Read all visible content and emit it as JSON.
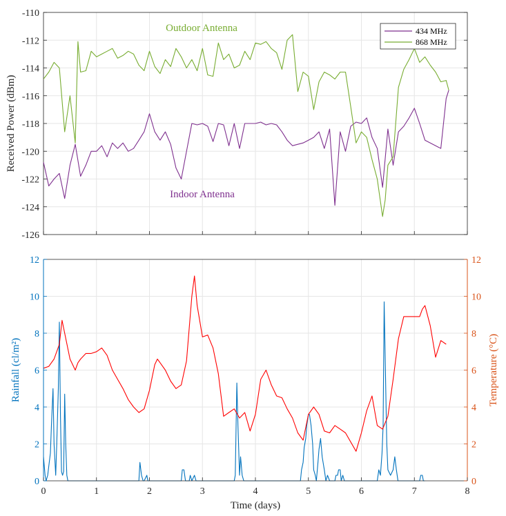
{
  "chart_data": [
    {
      "type": "line",
      "xlabel": "",
      "ylabel": "Received Power (dBm)",
      "xlim": [
        0,
        8
      ],
      "ylim": [
        -126,
        -110
      ],
      "x_ticks": [
        0,
        1,
        2,
        3,
        4,
        5,
        6,
        7,
        8
      ],
      "y_ticks": [
        -126,
        -124,
        -122,
        -120,
        -118,
        -116,
        -114,
        -112,
        -110
      ],
      "x_tick_labels": [
        "",
        "",
        "",
        "",
        "",
        "",
        "",
        "",
        ""
      ],
      "y_tick_labels": [
        "-126",
        "-124",
        "-122",
        "-120",
        "-118",
        "-116",
        "-114",
        "-112",
        "-110"
      ],
      "grid": true,
      "legend_position": "top-right",
      "annotations": [
        {
          "text": "Outdoor Antenna",
          "x": 3.0,
          "y": -111.0,
          "color": "#77ac30"
        },
        {
          "text": "Indoor Antenna",
          "x": 3.0,
          "y": -123.0,
          "color": "#7e2f8e"
        }
      ],
      "series": [
        {
          "name": "434 MHz",
          "color": "#7e2f8e",
          "x": [
            0.0,
            0.1,
            0.2,
            0.3,
            0.4,
            0.5,
            0.6,
            0.7,
            0.8,
            0.9,
            1.0,
            1.1,
            1.2,
            1.3,
            1.4,
            1.5,
            1.6,
            1.7,
            1.8,
            1.9,
            2.0,
            2.1,
            2.2,
            2.3,
            2.4,
            2.5,
            2.6,
            2.7,
            2.8,
            2.9,
            3.0,
            3.1,
            3.2,
            3.3,
            3.4,
            3.5,
            3.6,
            3.7,
            3.8,
            3.9,
            4.0,
            4.1,
            4.2,
            4.3,
            4.4,
            4.5,
            4.6,
            4.7,
            4.8,
            4.9,
            5.0,
            5.1,
            5.2,
            5.3,
            5.4,
            5.5,
            5.6,
            5.7,
            5.8,
            5.9,
            6.0,
            6.1,
            6.2,
            6.3,
            6.4,
            6.5,
            6.6,
            6.7,
            6.8,
            6.9,
            7.0,
            7.1,
            7.2,
            7.3,
            7.4,
            7.5,
            7.6,
            7.65
          ],
          "y": [
            -120.8,
            -122.5,
            -122.0,
            -121.6,
            -123.4,
            -121.0,
            -119.5,
            -121.8,
            -121.0,
            -120.0,
            -120.0,
            -119.6,
            -120.4,
            -119.4,
            -119.8,
            -119.4,
            -120.0,
            -119.8,
            -119.2,
            -118.6,
            -117.3,
            -118.6,
            -119.2,
            -118.6,
            -119.5,
            -121.2,
            -122.0,
            -120.0,
            -118.0,
            -118.1,
            -118.0,
            -118.2,
            -119.3,
            -118.0,
            -118.1,
            -119.6,
            -118.0,
            -119.8,
            -118.0,
            -118.0,
            -118.0,
            -117.9,
            -118.1,
            -118.0,
            -118.1,
            -118.6,
            -119.2,
            -119.6,
            -119.5,
            -119.4,
            -119.2,
            -119.0,
            -118.6,
            -119.8,
            -118.4,
            -123.9,
            -118.6,
            -120.0,
            -118.2,
            -117.9,
            -118.0,
            -117.6,
            -119.0,
            -119.8,
            -122.6,
            -118.4,
            -121.0,
            -118.6,
            -118.2,
            -117.6,
            -116.9,
            -118.0,
            -119.2,
            -119.4,
            -119.6,
            -119.8,
            -116.2,
            -115.6
          ]
        },
        {
          "name": "868 MHz",
          "color": "#77ac30",
          "x": [
            0.0,
            0.1,
            0.2,
            0.3,
            0.4,
            0.5,
            0.6,
            0.65,
            0.7,
            0.8,
            0.9,
            1.0,
            1.1,
            1.2,
            1.3,
            1.4,
            1.5,
            1.6,
            1.7,
            1.8,
            1.9,
            2.0,
            2.1,
            2.2,
            2.3,
            2.4,
            2.5,
            2.6,
            2.7,
            2.8,
            2.9,
            3.0,
            3.1,
            3.2,
            3.3,
            3.4,
            3.5,
            3.6,
            3.7,
            3.8,
            3.9,
            4.0,
            4.1,
            4.2,
            4.3,
            4.4,
            4.5,
            4.6,
            4.7,
            4.8,
            4.9,
            5.0,
            5.1,
            5.2,
            5.3,
            5.4,
            5.5,
            5.6,
            5.7,
            5.8,
            5.9,
            6.0,
            6.1,
            6.2,
            6.3,
            6.4,
            6.45,
            6.5,
            6.6,
            6.7,
            6.8,
            6.9,
            7.0,
            7.1,
            7.2,
            7.3,
            7.4,
            7.5,
            7.6,
            7.65
          ],
          "y": [
            -114.8,
            -114.3,
            -113.6,
            -114.0,
            -118.6,
            -116.0,
            -119.4,
            -112.1,
            -114.3,
            -114.2,
            -112.8,
            -113.2,
            -113.0,
            -112.8,
            -112.6,
            -113.3,
            -113.1,
            -112.8,
            -113.0,
            -113.8,
            -114.2,
            -112.8,
            -113.9,
            -114.4,
            -113.4,
            -113.9,
            -112.6,
            -113.2,
            -114.0,
            -113.4,
            -114.2,
            -112.6,
            -114.5,
            -114.6,
            -112.2,
            -113.4,
            -113.0,
            -114.0,
            -113.8,
            -112.8,
            -113.4,
            -112.2,
            -112.3,
            -112.1,
            -112.6,
            -112.9,
            -114.1,
            -112.0,
            -111.6,
            -115.7,
            -114.3,
            -114.6,
            -117.0,
            -115.0,
            -114.3,
            -114.5,
            -114.8,
            -114.3,
            -114.3,
            -116.8,
            -119.4,
            -118.6,
            -119.0,
            -120.6,
            -122.0,
            -124.7,
            -123.5,
            -121.0,
            -120.4,
            -115.4,
            -114.1,
            -113.4,
            -112.6,
            -113.6,
            -113.2,
            -113.8,
            -114.3,
            -115.0,
            -114.9,
            -115.6
          ]
        }
      ]
    },
    {
      "type": "line",
      "xlabel": "Time (days)",
      "ylabel": "Rainfall (cl/m²)",
      "ylabel_right": "Temperature (°C)",
      "xlim": [
        0,
        8
      ],
      "ylim": [
        0,
        12
      ],
      "ylim_right": [
        0,
        12
      ],
      "x_ticks": [
        0,
        1,
        2,
        3,
        4,
        5,
        6,
        7,
        8
      ],
      "y_ticks": [
        0,
        2,
        4,
        6,
        8,
        10,
        12
      ],
      "x_tick_labels": [
        "0",
        "1",
        "2",
        "3",
        "4",
        "5",
        "6",
        "7",
        "8"
      ],
      "y_tick_labels": [
        "0",
        "2",
        "4",
        "6",
        "8",
        "10",
        "12"
      ],
      "y_right_tick_labels": [
        "0",
        "2",
        "4",
        "6",
        "8",
        "10",
        "12"
      ],
      "grid": true,
      "series": [
        {
          "axis": "left",
          "color": "#0072bd",
          "x": [
            0.0,
            0.03,
            0.05,
            0.08,
            0.1,
            0.13,
            0.15,
            0.18,
            0.2,
            0.23,
            0.25,
            0.28,
            0.3,
            0.32,
            0.34,
            0.36,
            0.38,
            0.4,
            0.42,
            0.44,
            0.46,
            0.48,
            0.5,
            0.55,
            1.8,
            1.82,
            1.85,
            1.88,
            1.9,
            1.95,
            1.97,
            2.0,
            2.6,
            2.62,
            2.65,
            2.68,
            2.75,
            2.77,
            2.8,
            2.85,
            2.88,
            2.9,
            3.6,
            3.62,
            3.65,
            3.67,
            3.7,
            3.72,
            3.75,
            3.78,
            3.8,
            4.85,
            4.87,
            4.9,
            4.92,
            4.95,
            4.97,
            5.0,
            5.02,
            5.05,
            5.08,
            5.1,
            5.13,
            5.15,
            5.18,
            5.2,
            5.23,
            5.26,
            5.3,
            5.33,
            5.36,
            5.4,
            5.5,
            5.52,
            5.55,
            5.57,
            5.6,
            5.62,
            5.65,
            5.68,
            5.7,
            6.3,
            6.33,
            6.36,
            6.39,
            6.41,
            6.43,
            6.46,
            6.48,
            6.5,
            6.55,
            6.6,
            6.63,
            6.66,
            6.69,
            6.72,
            7.1,
            7.12,
            7.15,
            7.17,
            7.2
          ],
          "y": [
            1.3,
            0.3,
            0.0,
            0.3,
            0.8,
            1.5,
            3.0,
            5.0,
            2.0,
            0.3,
            2.0,
            5.0,
            8.6,
            3.5,
            0.5,
            0.3,
            0.5,
            4.7,
            2.0,
            0.3,
            0.0,
            0.0,
            0.0,
            0.0,
            0.0,
            1.0,
            0.3,
            0.0,
            0.0,
            0.3,
            0.0,
            0.0,
            0.0,
            0.6,
            0.6,
            0.0,
            0.0,
            0.3,
            0.0,
            0.3,
            0.0,
            0.0,
            0.0,
            0.3,
            5.3,
            3.0,
            0.3,
            1.3,
            0.3,
            0.0,
            0.0,
            0.0,
            0.6,
            1.0,
            1.8,
            2.3,
            3.0,
            3.6,
            3.6,
            3.0,
            2.0,
            0.6,
            0.3,
            0.0,
            1.0,
            1.7,
            2.3,
            1.3,
            0.6,
            0.0,
            0.3,
            0.0,
            0.0,
            0.3,
            0.3,
            0.6,
            0.6,
            0.0,
            0.3,
            0.0,
            0.0,
            0.0,
            0.6,
            0.3,
            1.5,
            3.0,
            9.7,
            5.0,
            2.0,
            0.6,
            0.3,
            0.6,
            1.3,
            0.6,
            0.0,
            0.0,
            0.0,
            0.3,
            0.3,
            0.0,
            0.0
          ]
        },
        {
          "axis": "right",
          "color": "#ff0000",
          "x": [
            0.0,
            0.1,
            0.2,
            0.3,
            0.35,
            0.4,
            0.5,
            0.6,
            0.65,
            0.7,
            0.8,
            0.9,
            1.0,
            1.1,
            1.2,
            1.3,
            1.4,
            1.5,
            1.6,
            1.7,
            1.8,
            1.9,
            2.0,
            2.1,
            2.15,
            2.2,
            2.3,
            2.4,
            2.5,
            2.6,
            2.7,
            2.8,
            2.85,
            2.9,
            3.0,
            3.1,
            3.2,
            3.3,
            3.4,
            3.5,
            3.6,
            3.7,
            3.8,
            3.9,
            4.0,
            4.1,
            4.2,
            4.3,
            4.4,
            4.5,
            4.6,
            4.7,
            4.8,
            4.9,
            5.0,
            5.1,
            5.2,
            5.3,
            5.4,
            5.5,
            5.6,
            5.7,
            5.8,
            5.9,
            6.0,
            6.1,
            6.2,
            6.3,
            6.4,
            6.5,
            6.6,
            6.7,
            6.8,
            6.9,
            7.0,
            7.1,
            7.15,
            7.2,
            7.3,
            7.4,
            7.5,
            7.6
          ],
          "y": [
            6.1,
            6.2,
            6.6,
            7.4,
            8.7,
            8.0,
            6.6,
            6.0,
            6.4,
            6.6,
            6.9,
            6.9,
            7.0,
            7.2,
            6.8,
            6.0,
            5.5,
            5.0,
            4.4,
            4.0,
            3.7,
            3.9,
            4.9,
            6.3,
            6.6,
            6.4,
            6.0,
            5.4,
            5.0,
            5.2,
            6.5,
            10.0,
            11.1,
            9.5,
            7.8,
            7.9,
            7.2,
            5.8,
            3.5,
            3.7,
            3.9,
            3.4,
            3.7,
            2.7,
            3.6,
            5.5,
            6.0,
            5.2,
            4.6,
            4.5,
            3.9,
            3.4,
            2.6,
            2.2,
            3.6,
            4.0,
            3.6,
            2.7,
            2.6,
            3.0,
            2.8,
            2.6,
            2.1,
            1.6,
            2.6,
            3.8,
            4.6,
            3.0,
            2.8,
            3.5,
            5.5,
            7.7,
            8.9,
            8.9,
            8.9,
            8.9,
            9.3,
            9.5,
            8.4,
            6.7,
            7.6,
            7.4
          ]
        }
      ]
    }
  ]
}
